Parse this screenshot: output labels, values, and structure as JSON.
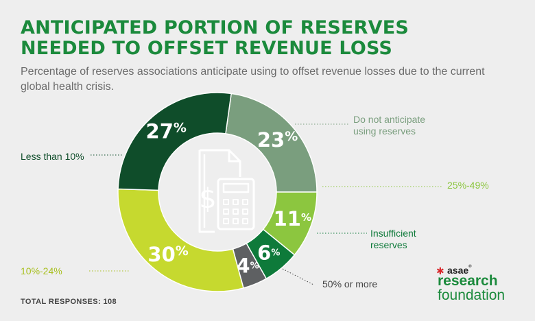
{
  "header": {
    "title_line1": "ANTICIPATED PORTION OF RESERVES",
    "title_line2": "NEEDED TO OFFSET REVENUE LOSS",
    "subtitle": "Percentage of reserves associations anticipate using to offset revenue losses due to the current global health crisis."
  },
  "footer": {
    "total_responses": "TOTAL RESPONSES: 108"
  },
  "logo": {
    "line1": "asae",
    "line2": "research",
    "line3": "foundation",
    "star_color": "#d9262a",
    "green": "#1b8a3c"
  },
  "chart_data": {
    "type": "pie",
    "variant": "donut",
    "categories": [
      "Do not anticipate using reserves",
      "25%-49%",
      "Insufficient reserves",
      "50% or more",
      "10%-24%",
      "Less than 10%"
    ],
    "values": [
      23,
      11,
      6,
      4,
      30,
      27
    ],
    "value_labels": [
      "23",
      "11",
      "6",
      "4",
      "30",
      "27"
    ],
    "unit": "%",
    "legend_lines": [
      [
        "Do not anticipate",
        "using reserves"
      ],
      [
        "25%-49%"
      ],
      [
        "Insufficient",
        "reserves"
      ],
      [
        "50% or more"
      ],
      [
        "10%-24%"
      ],
      [
        "Less than 10%"
      ]
    ],
    "colors": [
      "#7a9e7e",
      "#8cc63f",
      "#0e7a3a",
      "#5e6062",
      "#c6d92f",
      "#0f4d2a"
    ],
    "label_colors": [
      "#7a9e7e",
      "#8cc63f",
      "#0e7a3a",
      "#444444",
      "#a8bf1e",
      "#0f4d2a"
    ],
    "center_icon": "document-calculator-dollar-icon"
  }
}
